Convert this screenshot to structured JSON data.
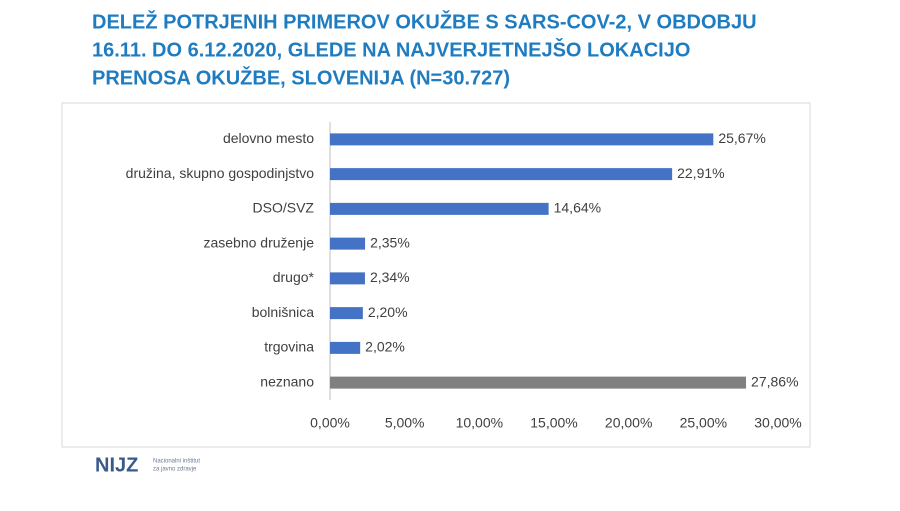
{
  "chart_data": {
    "type": "hbar",
    "title": [
      "DELEŽ POTRJENIH PRIMEROV OKUŽBE S SARS-COV-2, V OBDOBJU",
      "16.11. DO 6.12.2020, GLEDE NA NAJVERJETNEJŠO LOKACIJO",
      "PRENOSA OKUŽBE, SLOVENIJA (N=30.727)"
    ],
    "categories": [
      "delovno mesto",
      "družina, skupno gospodinjstvo",
      "DSO/SVZ",
      "zasebno druženje",
      "drugo*",
      "bolnišnica",
      "trgovina",
      "neznano"
    ],
    "values": [
      25.67,
      22.91,
      14.64,
      2.35,
      2.34,
      2.2,
      2.02,
      27.86
    ],
    "value_labels": [
      "25,67%",
      "22,91%",
      "14,64%",
      "2,35%",
      "2,34%",
      "2,20%",
      "2,02%",
      "27,86%"
    ],
    "colors": [
      "#4472c4",
      "#4472c4",
      "#4472c4",
      "#4472c4",
      "#4472c4",
      "#4472c4",
      "#4472c4",
      "#808080"
    ],
    "xlim": [
      0,
      30
    ],
    "xticks": [
      {
        "value": 0,
        "label": "0,00%"
      },
      {
        "value": 5,
        "label": "5,00%"
      },
      {
        "value": 10,
        "label": "10,00%"
      },
      {
        "value": 15,
        "label": "15,00%"
      },
      {
        "value": 20,
        "label": "20,00%"
      },
      {
        "value": 25,
        "label": "25,00%"
      },
      {
        "value": 30,
        "label": "30,00%"
      }
    ],
    "grid": false
  },
  "logo": {
    "name": "NIJZ",
    "line1": "Nacionalni inštitut",
    "line2": "za javno zdravje"
  }
}
